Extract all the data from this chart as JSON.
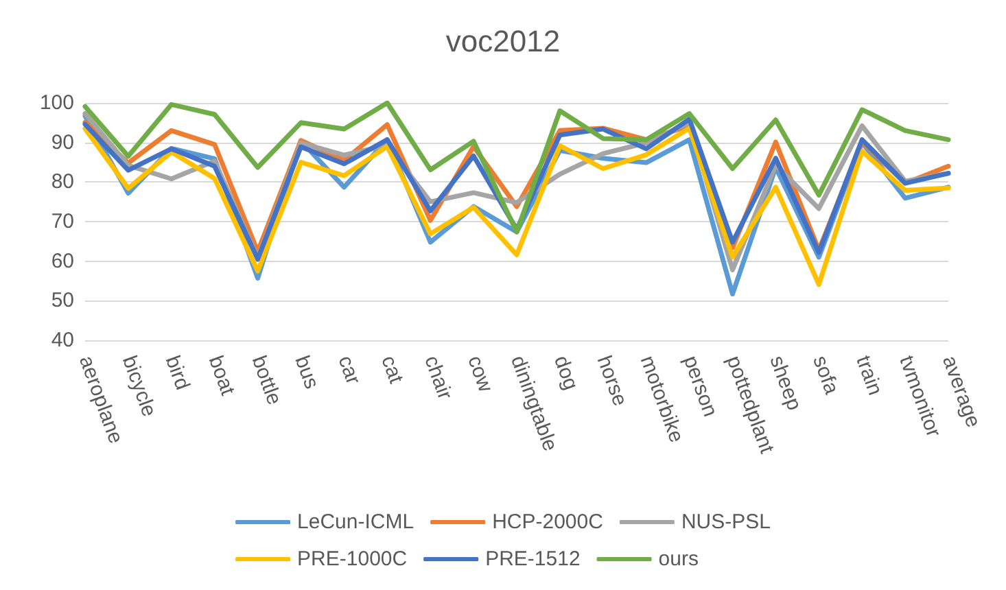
{
  "chart_data": {
    "type": "line",
    "title": "voc2012",
    "categories": [
      "aeroplane",
      "bicycle",
      "bird",
      "boat",
      "bottle",
      "bus",
      "car",
      "cat",
      "chair",
      "cow",
      "diningtable",
      "dog",
      "horse",
      "motorbike",
      "person",
      "pottedplant",
      "sheep",
      "sofa",
      "train",
      "tvmonitor",
      "average"
    ],
    "series": [
      {
        "name": "LeCun-ICML",
        "color": "#5b9bd5",
        "values": [
          96.7,
          77.2,
          88.5,
          85.9,
          55.7,
          90.4,
          78.7,
          90.7,
          64.8,
          73.8,
          67.4,
          88,
          86,
          84.9,
          90.7,
          51.7,
          83.7,
          61,
          90,
          75.9,
          78.7
        ]
      },
      {
        "name": "HCP-2000C",
        "color": "#ed7d31",
        "values": [
          95.1,
          84.8,
          93,
          89.5,
          62.4,
          90.5,
          85.5,
          94.5,
          70.3,
          89,
          73.8,
          93,
          93.6,
          90.7,
          94.2,
          63.4,
          90.1,
          62.8,
          90.1,
          79.7,
          84
        ]
      },
      {
        "name": "NUS-PSL",
        "color": "#a5a5a5",
        "values": [
          97.3,
          84.2,
          80.8,
          85.3,
          60.8,
          89.9,
          86.8,
          89.3,
          75,
          77.3,
          74.8,
          82,
          87.2,
          89.9,
          95,
          57.8,
          84.3,
          73.3,
          94.2,
          80.2,
          82.2
        ]
      },
      {
        "name": "PRE-1000C",
        "color": "#ffc000",
        "values": [
          93.5,
          78.4,
          87.6,
          80.9,
          57.5,
          85,
          81.6,
          89,
          66.9,
          73.6,
          61.6,
          89.2,
          83.4,
          86.9,
          93.6,
          61,
          78.7,
          54.1,
          87.8,
          77.9,
          78.5
        ]
      },
      {
        "name": "PRE-1512",
        "color": "#4472c4",
        "values": [
          94.6,
          83,
          88.4,
          84,
          60.5,
          88.9,
          84.6,
          90.7,
          72.7,
          86.6,
          68,
          91.9,
          93.4,
          88.4,
          95.9,
          64.8,
          86,
          62.2,
          90.7,
          79.7,
          82.2
        ]
      },
      {
        "name": "ours",
        "color": "#70ad47",
        "values": [
          99.1,
          86.5,
          99.6,
          97.1,
          83.7,
          95,
          93.4,
          100,
          83.1,
          90.3,
          67.4,
          98,
          91,
          90.7,
          97.3,
          83.4,
          95.7,
          76.7,
          98.3,
          93,
          90.7
        ]
      }
    ],
    "ylim": [
      40,
      100
    ],
    "yticks": [
      40,
      50,
      60,
      70,
      80,
      90,
      100
    ],
    "grid": "y",
    "legend": "bottom",
    "marker": "none",
    "line_style": "solid"
  }
}
